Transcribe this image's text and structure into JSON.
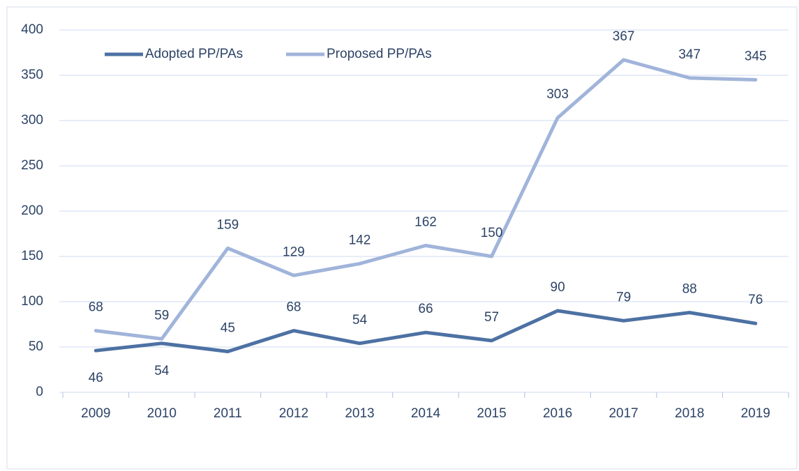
{
  "chart_data": {
    "type": "line",
    "categories": [
      "2009",
      "2010",
      "2011",
      "2012",
      "2013",
      "2014",
      "2015",
      "2016",
      "2017",
      "2018",
      "2019"
    ],
    "series": [
      {
        "name": "Adopted PP/PAs",
        "color": "#4d71a3",
        "values": [
          46,
          54,
          45,
          68,
          54,
          66,
          57,
          90,
          79,
          88,
          76
        ]
      },
      {
        "name": "Proposed PP/PAs",
        "color": "#a1b4da",
        "values": [
          68,
          59,
          159,
          129,
          142,
          162,
          150,
          303,
          367,
          347,
          345
        ]
      }
    ],
    "ylim": [
      0,
      400
    ],
    "yticks": [
      0,
      50,
      100,
      150,
      200,
      250,
      300,
      350,
      400
    ],
    "grid": true,
    "legend": "top-left"
  }
}
